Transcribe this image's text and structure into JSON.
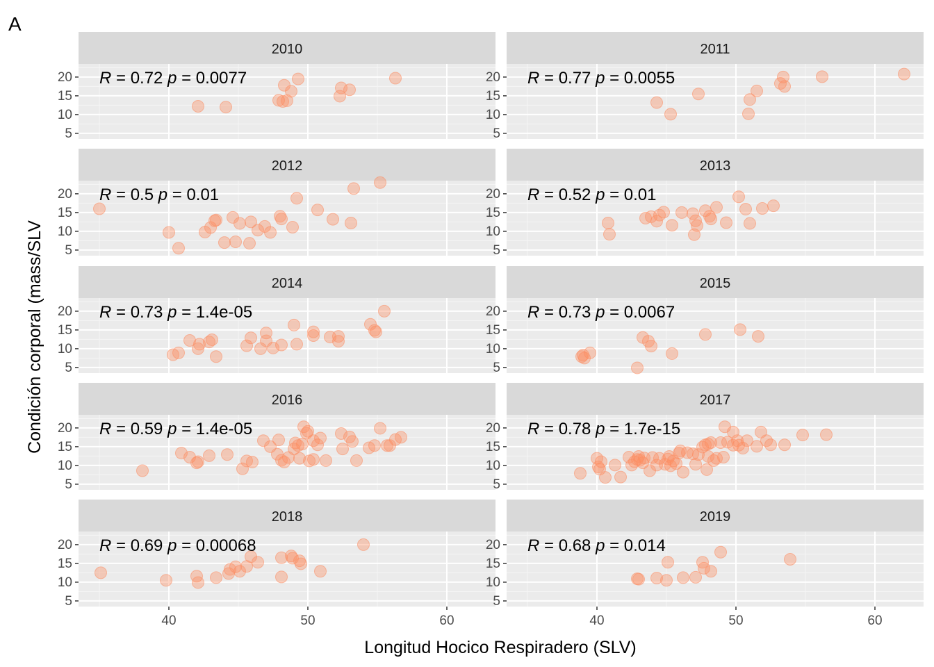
{
  "figure": {
    "tag": "A",
    "xlabel": "Longitud Hocico Respiradero (SLV)",
    "ylabel": "Condición corporal (mass/SLV"
  },
  "chart_data": {
    "type": "scatter",
    "facet_layout": "5 rows x 2 columns",
    "xlim": [
      33.5,
      63.5
    ],
    "ylim": [
      3.5,
      23.5
    ],
    "x_ticks": [
      40,
      50,
      60
    ],
    "y_ticks": [
      5,
      10,
      15,
      20
    ],
    "grid": true,
    "point_color": "#fc8d62",
    "panels": [
      {
        "year": "2010",
        "stats": {
          "R": "0.72",
          "p": "0.0077"
        },
        "points": [
          [
            42.1,
            12.2
          ],
          [
            44.1,
            12
          ],
          [
            47.9,
            13.8
          ],
          [
            48.2,
            13.5
          ],
          [
            48.3,
            17.8
          ],
          [
            48.5,
            13.7
          ],
          [
            48.8,
            16.2
          ],
          [
            49.3,
            19.5
          ],
          [
            52.3,
            14.9
          ],
          [
            52.4,
            17.1
          ],
          [
            53,
            16.6
          ],
          [
            56.3,
            19.7
          ]
        ]
      },
      {
        "year": "2011",
        "stats": {
          "R": "0.77",
          "p": "0.0055"
        },
        "points": [
          [
            44.3,
            13.2
          ],
          [
            45.3,
            10.1
          ],
          [
            47.3,
            15.5
          ],
          [
            50.9,
            10.2
          ],
          [
            51,
            14
          ],
          [
            51.5,
            16.3
          ],
          [
            53.2,
            18.3
          ],
          [
            53.4,
            20
          ],
          [
            53.5,
            17.5
          ],
          [
            56.2,
            20.1
          ],
          [
            62.1,
            20.8
          ]
        ]
      },
      {
        "year": "2012",
        "stats": {
          "R": "0.5",
          "p": "0.01"
        },
        "points": [
          [
            35,
            16
          ],
          [
            40,
            9.7
          ],
          [
            40.7,
            5.5
          ],
          [
            42.6,
            9.8
          ],
          [
            43,
            11
          ],
          [
            43.3,
            12.8
          ],
          [
            43.4,
            13
          ],
          [
            44,
            7
          ],
          [
            44.6,
            13.7
          ],
          [
            44.8,
            7.2
          ],
          [
            45.1,
            12.1
          ],
          [
            45.8,
            6.8
          ],
          [
            45.9,
            12.5
          ],
          [
            46.4,
            10.3
          ],
          [
            46.9,
            11.3
          ],
          [
            47.3,
            9.7
          ],
          [
            48,
            14
          ],
          [
            48.1,
            13.3
          ],
          [
            48.9,
            11.1
          ],
          [
            49.2,
            18.8
          ],
          [
            50.7,
            15.7
          ],
          [
            51.8,
            13.2
          ],
          [
            53.1,
            12.2
          ],
          [
            53.3,
            21.4
          ],
          [
            55.2,
            23
          ]
        ]
      },
      {
        "year": "2013",
        "stats": {
          "R": "0.52",
          "p": "0.01"
        },
        "points": [
          [
            40.8,
            12.2
          ],
          [
            40.9,
            9.2
          ],
          [
            43.5,
            13.5
          ],
          [
            43.9,
            13.9
          ],
          [
            44.3,
            12.7
          ],
          [
            44.5,
            14.3
          ],
          [
            44.8,
            15.1
          ],
          [
            45.4,
            11.6
          ],
          [
            46.1,
            15
          ],
          [
            46.9,
            14.7
          ],
          [
            47,
            9.1
          ],
          [
            47.1,
            12.8
          ],
          [
            47.2,
            11.5
          ],
          [
            47.8,
            15.5
          ],
          [
            48.1,
            14
          ],
          [
            48.2,
            13.3
          ],
          [
            48.6,
            16.4
          ],
          [
            49.3,
            12.3
          ],
          [
            50.2,
            19.2
          ],
          [
            50.7,
            15.9
          ],
          [
            51,
            12.1
          ],
          [
            51.9,
            16.1
          ],
          [
            52.7,
            16.8
          ]
        ]
      },
      {
        "year": "2014",
        "stats": {
          "R": "0.73",
          "p": "1.4e-05"
        },
        "points": [
          [
            40.3,
            8.4
          ],
          [
            40.7,
            8.9
          ],
          [
            41.5,
            12.2
          ],
          [
            42.1,
            10
          ],
          [
            42.2,
            11.2
          ],
          [
            42.9,
            11.8
          ],
          [
            43.1,
            12.4
          ],
          [
            43.4,
            7.9
          ],
          [
            45.6,
            10.8
          ],
          [
            45.9,
            12.9
          ],
          [
            46.6,
            10
          ],
          [
            47,
            12.1
          ],
          [
            47,
            14.2
          ],
          [
            47.5,
            10.2
          ],
          [
            48.1,
            11
          ],
          [
            49,
            16.3
          ],
          [
            49.2,
            11.2
          ],
          [
            50.4,
            14.5
          ],
          [
            50.4,
            13.5
          ],
          [
            51.6,
            13.1
          ],
          [
            52.2,
            12
          ],
          [
            52.2,
            13.3
          ],
          [
            54.5,
            16.5
          ],
          [
            54.8,
            14.9
          ],
          [
            54.9,
            14.5
          ],
          [
            55.5,
            20
          ]
        ]
      },
      {
        "year": "2015",
        "stats": {
          "R": "0.73",
          "p": "0.0067"
        },
        "points": [
          [
            38.9,
            7.9
          ],
          [
            39,
            8.3
          ],
          [
            39.1,
            7.5
          ],
          [
            39.5,
            8.9
          ],
          [
            42.9,
            4.9
          ],
          [
            43.3,
            13
          ],
          [
            43.7,
            12
          ],
          [
            43.9,
            10.7
          ],
          [
            45.4,
            8.7
          ],
          [
            47.8,
            13.8
          ],
          [
            50.3,
            15.1
          ],
          [
            51.6,
            13.3
          ]
        ]
      },
      {
        "year": "2016",
        "stats": {
          "R": "0.59",
          "p": "1.4e-05"
        },
        "points": [
          [
            38.1,
            8.6
          ],
          [
            40.9,
            13.3
          ],
          [
            41.5,
            12.2
          ],
          [
            42.1,
            11
          ],
          [
            42,
            10.7
          ],
          [
            42.9,
            12.6
          ],
          [
            44.2,
            12.9
          ],
          [
            45.3,
            9.1
          ],
          [
            45.6,
            11.2
          ],
          [
            46,
            10.9
          ],
          [
            46.8,
            16.6
          ],
          [
            47.3,
            15
          ],
          [
            47.8,
            13
          ],
          [
            47.9,
            16.8
          ],
          [
            48.1,
            11.4
          ],
          [
            48.3,
            10.9
          ],
          [
            48.6,
            12.1
          ],
          [
            49,
            14.4
          ],
          [
            49.1,
            16
          ],
          [
            49.3,
            15.3
          ],
          [
            49.4,
            11.9
          ],
          [
            49.6,
            15.7
          ],
          [
            49.7,
            20.3
          ],
          [
            49.9,
            18.6
          ],
          [
            50,
            19.1
          ],
          [
            50.1,
            11.2
          ],
          [
            50.4,
            16.6
          ],
          [
            50.7,
            15.5
          ],
          [
            50.9,
            17.3
          ],
          [
            50.4,
            11.6
          ],
          [
            51.3,
            11.3
          ],
          [
            52.4,
            18.5
          ],
          [
            52.5,
            14.4
          ],
          [
            53,
            17.6
          ],
          [
            53.2,
            16.4
          ],
          [
            53.5,
            11.3
          ],
          [
            54.4,
            14.7
          ],
          [
            54.8,
            15.3
          ],
          [
            55.2,
            19.9
          ],
          [
            55.7,
            15.3
          ],
          [
            55.9,
            15.3
          ],
          [
            56.3,
            16.9
          ],
          [
            56.7,
            17.5
          ]
        ]
      },
      {
        "year": "2017",
        "stats": {
          "R": "0.78",
          "p": "1.7e-15"
        },
        "points": [
          [
            38.8,
            7.9
          ],
          [
            40,
            11.9
          ],
          [
            40.1,
            9.6
          ],
          [
            40.2,
            9
          ],
          [
            40.3,
            11
          ],
          [
            40.6,
            6.8
          ],
          [
            41.3,
            10.1
          ],
          [
            41.7,
            6.9
          ],
          [
            42.3,
            12.2
          ],
          [
            42.5,
            10.1
          ],
          [
            42.7,
            11
          ],
          [
            42.9,
            11.6
          ],
          [
            43,
            12.4
          ],
          [
            43.1,
            11.4
          ],
          [
            43.3,
            10.7
          ],
          [
            43.4,
            12
          ],
          [
            43.8,
            8.6
          ],
          [
            44,
            12.1
          ],
          [
            44.3,
            10.1
          ],
          [
            44.5,
            11.9
          ],
          [
            44.9,
            10.3
          ],
          [
            45.1,
            11.7
          ],
          [
            45.2,
            12.4
          ],
          [
            45.3,
            9.9
          ],
          [
            45.5,
            11.2
          ],
          [
            45.7,
            10.5
          ],
          [
            45.9,
            13.3
          ],
          [
            46,
            13.9
          ],
          [
            46.2,
            8.2
          ],
          [
            46.5,
            13.4
          ],
          [
            46.9,
            13.1
          ],
          [
            47.1,
            10.3
          ],
          [
            47.3,
            12.9
          ],
          [
            47.6,
            14.9
          ],
          [
            47.8,
            15.5
          ],
          [
            47.9,
            8.9
          ],
          [
            48,
            12.4
          ],
          [
            48,
            15.7
          ],
          [
            48.2,
            16.1
          ],
          [
            48.4,
            11.3
          ],
          [
            48.6,
            11.9
          ],
          [
            48.9,
            16.1
          ],
          [
            49.1,
            12.2
          ],
          [
            49.2,
            20.3
          ],
          [
            49.4,
            16.2
          ],
          [
            49.8,
            18.9
          ],
          [
            49.8,
            15.4
          ],
          [
            50.1,
            16.6
          ],
          [
            50.2,
            15.4
          ],
          [
            50.5,
            14.6
          ],
          [
            50.8,
            16.6
          ],
          [
            51.5,
            15.1
          ],
          [
            51.8,
            18.9
          ],
          [
            52.2,
            16.6
          ],
          [
            52.5,
            15.5
          ],
          [
            53.5,
            15.5
          ],
          [
            54.8,
            18.1
          ],
          [
            56.5,
            18.2
          ]
        ]
      },
      {
        "year": "2018",
        "stats": {
          "R": "0.69",
          "p": "0.00068"
        },
        "points": [
          [
            35.1,
            12.5
          ],
          [
            39.8,
            10.5
          ],
          [
            42,
            11.6
          ],
          [
            42.1,
            9.9
          ],
          [
            43.4,
            11.2
          ],
          [
            44.3,
            12.3
          ],
          [
            44.4,
            13.4
          ],
          [
            44.8,
            14.1
          ],
          [
            45.1,
            12.9
          ],
          [
            45.6,
            14.2
          ],
          [
            45.9,
            16.8
          ],
          [
            46.4,
            15.3
          ],
          [
            48.1,
            11.4
          ],
          [
            48.1,
            16.5
          ],
          [
            48.8,
            17
          ],
          [
            48.9,
            16.4
          ],
          [
            49.4,
            15.7
          ],
          [
            49.5,
            14.9
          ],
          [
            50.9,
            12.9
          ],
          [
            54,
            20
          ]
        ]
      },
      {
        "year": "2019",
        "stats": {
          "R": "0.68",
          "p": "0.014"
        },
        "points": [
          [
            42.9,
            10.9
          ],
          [
            43,
            10.8
          ],
          [
            44.3,
            11.1
          ],
          [
            45,
            10.5
          ],
          [
            45.1,
            15.3
          ],
          [
            46.2,
            11.2
          ],
          [
            47.1,
            11.3
          ],
          [
            47.6,
            15.3
          ],
          [
            47.7,
            13.7
          ],
          [
            48.2,
            12.9
          ],
          [
            48.9,
            18
          ],
          [
            53.9,
            16.1
          ]
        ]
      }
    ]
  }
}
